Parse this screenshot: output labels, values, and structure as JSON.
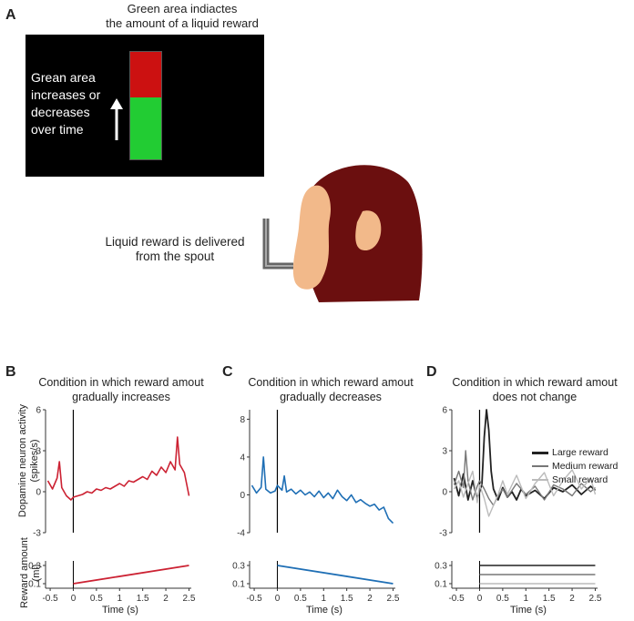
{
  "panel_a": {
    "letter": "A",
    "screen_title_line1": "Green area indiactes",
    "screen_title_line2": "the amount of a liquid reward",
    "screen_text": [
      "Grean area",
      "increases or",
      "decreases",
      "over time"
    ],
    "spout_caption_line1": "Liquid reward is delivered",
    "spout_caption_line2": "from the spout",
    "colors": {
      "screen": "#000000",
      "green": "#22cc33",
      "red": "#cc1111",
      "head": "#6b0f0f",
      "face": "#f2b98a",
      "spout": "#666666"
    }
  },
  "panels": [
    {
      "letter": "B",
      "title_line1": "Condition in which reward amout",
      "title_line2": "gradually increases",
      "ylabel_line1": "Dopamine neuron activity",
      "ylabel_line2": "(spikes/s)",
      "reward_ylabel_line1": "Reward amount",
      "reward_ylabel_line2": "(ml)",
      "xlabel": "Time (s)",
      "color": "#cc2233"
    },
    {
      "letter": "C",
      "title_line1": "Condition in which reward amout",
      "title_line2": "gradually decreases",
      "xlabel": "Time (s)",
      "color": "#1f6fb5"
    },
    {
      "letter": "D",
      "title_line1": "Condition in which reward amout",
      "title_line2": "does not change",
      "xlabel": "Time (s)",
      "legend": [
        "Large reward",
        "Medium reward",
        "Small reward"
      ]
    }
  ],
  "chart_data": [
    {
      "type": "line",
      "title": "Condition in which reward amout gradually increases",
      "xlabel": "Time (s)",
      "ylabel": "Dopamine neuron activity (spikes/s)",
      "xlim": [
        -0.6,
        2.55
      ],
      "ylim": [
        -3,
        6
      ],
      "yticks": [
        "-3",
        "0",
        "3",
        "6"
      ],
      "xticks": [
        "-0.5",
        "0",
        "0.5",
        "1",
        "1.5",
        "2",
        "2.5"
      ],
      "series": [
        {
          "x": [
            -0.55,
            -0.45,
            -0.35,
            -0.3,
            -0.25,
            -0.15,
            -0.05,
            0,
            0.1,
            0.2,
            0.3,
            0.4,
            0.5,
            0.6,
            0.7,
            0.8,
            0.9,
            1.0,
            1.1,
            1.2,
            1.3,
            1.4,
            1.5,
            1.6,
            1.7,
            1.8,
            1.9,
            2.0,
            2.1,
            2.2,
            2.25,
            2.3,
            2.4,
            2.5
          ],
          "y": [
            0.8,
            0.2,
            1.0,
            2.2,
            0.3,
            -0.3,
            -0.6,
            -0.4,
            -0.3,
            -0.2,
            0.0,
            -0.1,
            0.2,
            0.1,
            0.3,
            0.2,
            0.4,
            0.6,
            0.4,
            0.8,
            0.7,
            0.9,
            1.1,
            0.9,
            1.5,
            1.2,
            1.8,
            1.4,
            2.2,
            1.6,
            4.0,
            2.0,
            1.4,
            -0.3
          ]
        }
      ],
      "reward": {
        "ylabel": "Reward amount (ml)",
        "yticks": [
          "0.1",
          "0.3"
        ],
        "ylim": [
          0.05,
          0.35
        ],
        "x": [
          0,
          2.5
        ],
        "y": [
          0.1,
          0.3
        ]
      }
    },
    {
      "type": "line",
      "title": "Condition in which reward amout gradually decreases",
      "xlabel": "Time (s)",
      "xlim": [
        -0.6,
        2.55
      ],
      "ylim": [
        -4,
        9
      ],
      "yticks": [
        "-4",
        "0",
        "4",
        "8"
      ],
      "xticks": [
        "-0.5",
        "0",
        "0.5",
        "1",
        "1.5",
        "2",
        "2.5"
      ],
      "series": [
        {
          "x": [
            -0.55,
            -0.45,
            -0.35,
            -0.3,
            -0.25,
            -0.15,
            -0.05,
            0,
            0.1,
            0.15,
            0.2,
            0.3,
            0.4,
            0.5,
            0.6,
            0.7,
            0.8,
            0.9,
            1.0,
            1.1,
            1.2,
            1.3,
            1.4,
            1.5,
            1.6,
            1.7,
            1.8,
            1.9,
            2.0,
            2.1,
            2.2,
            2.3,
            2.4,
            2.5
          ],
          "y": [
            1.0,
            0.2,
            0.8,
            4.0,
            0.6,
            0.2,
            0.4,
            1.0,
            0.5,
            2.0,
            0.3,
            0.6,
            0.1,
            0.5,
            0.0,
            0.3,
            -0.2,
            0.4,
            -0.3,
            0.2,
            -0.4,
            0.5,
            -0.2,
            -0.6,
            0.0,
            -0.8,
            -0.5,
            -0.9,
            -1.2,
            -1.0,
            -1.6,
            -1.3,
            -2.5,
            -3.0
          ]
        }
      ],
      "reward": {
        "yticks": [
          "0.1",
          "0.3"
        ],
        "ylim": [
          0.05,
          0.35
        ],
        "x": [
          0,
          2.5
        ],
        "y": [
          0.3,
          0.1
        ]
      }
    },
    {
      "type": "line",
      "title": "Condition in which reward amout does not change",
      "xlabel": "Time (s)",
      "xlim": [
        -0.6,
        2.55
      ],
      "ylim": [
        -3,
        6
      ],
      "yticks": [
        "-3",
        "0",
        "3",
        "6"
      ],
      "xticks": [
        "-0.5",
        "0",
        "0.5",
        "1",
        "1.5",
        "2",
        "2.5"
      ],
      "legend_position": "top-right",
      "series": [
        {
          "name": "Large reward",
          "color": "#222222",
          "x": [
            -0.55,
            -0.45,
            -0.35,
            -0.25,
            -0.15,
            -0.05,
            0,
            0.05,
            0.1,
            0.15,
            0.2,
            0.25,
            0.3,
            0.4,
            0.5,
            0.6,
            0.7,
            0.8,
            0.9,
            1.0,
            1.2,
            1.4,
            1.6,
            1.8,
            2.0,
            2.2,
            2.4,
            2.5
          ],
          "y": [
            1.0,
            -0.3,
            1.3,
            -0.6,
            0.8,
            -0.5,
            0.0,
            0.5,
            4.0,
            6.0,
            4.5,
            1.5,
            0.2,
            -0.6,
            0.3,
            -0.4,
            0.0,
            -0.6,
            0.2,
            -0.3,
            0.1,
            -0.5,
            0.3,
            0.0,
            0.5,
            -0.2,
            0.4,
            0.1
          ]
        },
        {
          "name": "Medium reward",
          "color": "#777777",
          "x": [
            -0.55,
            -0.45,
            -0.35,
            -0.3,
            -0.25,
            -0.15,
            -0.05,
            0,
            0.1,
            0.2,
            0.3,
            0.4,
            0.5,
            0.6,
            0.8,
            1.0,
            1.2,
            1.4,
            1.6,
            1.8,
            2.0,
            2.2,
            2.4,
            2.5
          ],
          "y": [
            0.5,
            1.5,
            0.3,
            3.0,
            0.8,
            -0.6,
            0.4,
            0.8,
            0.2,
            -0.5,
            -1.0,
            -0.3,
            0.2,
            -0.4,
            0.6,
            -0.2,
            0.4,
            -0.6,
            0.5,
            0.2,
            -0.3,
            0.6,
            0.0,
            0.3
          ]
        },
        {
          "name": "Small reward",
          "color": "#bbbbbb",
          "x": [
            -0.55,
            -0.45,
            -0.35,
            -0.25,
            -0.15,
            -0.05,
            0,
            0.1,
            0.2,
            0.3,
            0.4,
            0.5,
            0.6,
            0.8,
            1.0,
            1.2,
            1.4,
            1.6,
            1.8,
            2.0,
            2.2,
            2.4,
            2.5
          ],
          "y": [
            0.2,
            0.8,
            -0.4,
            0.6,
            1.5,
            -0.8,
            0.5,
            -0.5,
            -1.8,
            -1.0,
            -0.2,
            0.8,
            -0.2,
            1.2,
            -0.5,
            0.6,
            1.4,
            -0.3,
            0.8,
            1.6,
            0.2,
            1.0,
            -0.2
          ]
        }
      ],
      "reward": {
        "yticks": [
          "0.1",
          "0.3"
        ],
        "ylim": [
          0.05,
          0.35
        ],
        "x": [
          0,
          2.5
        ],
        "levels": [
          0.3,
          0.2,
          0.1
        ],
        "level_colors": [
          "#222222",
          "#777777",
          "#bbbbbb"
        ]
      }
    }
  ]
}
